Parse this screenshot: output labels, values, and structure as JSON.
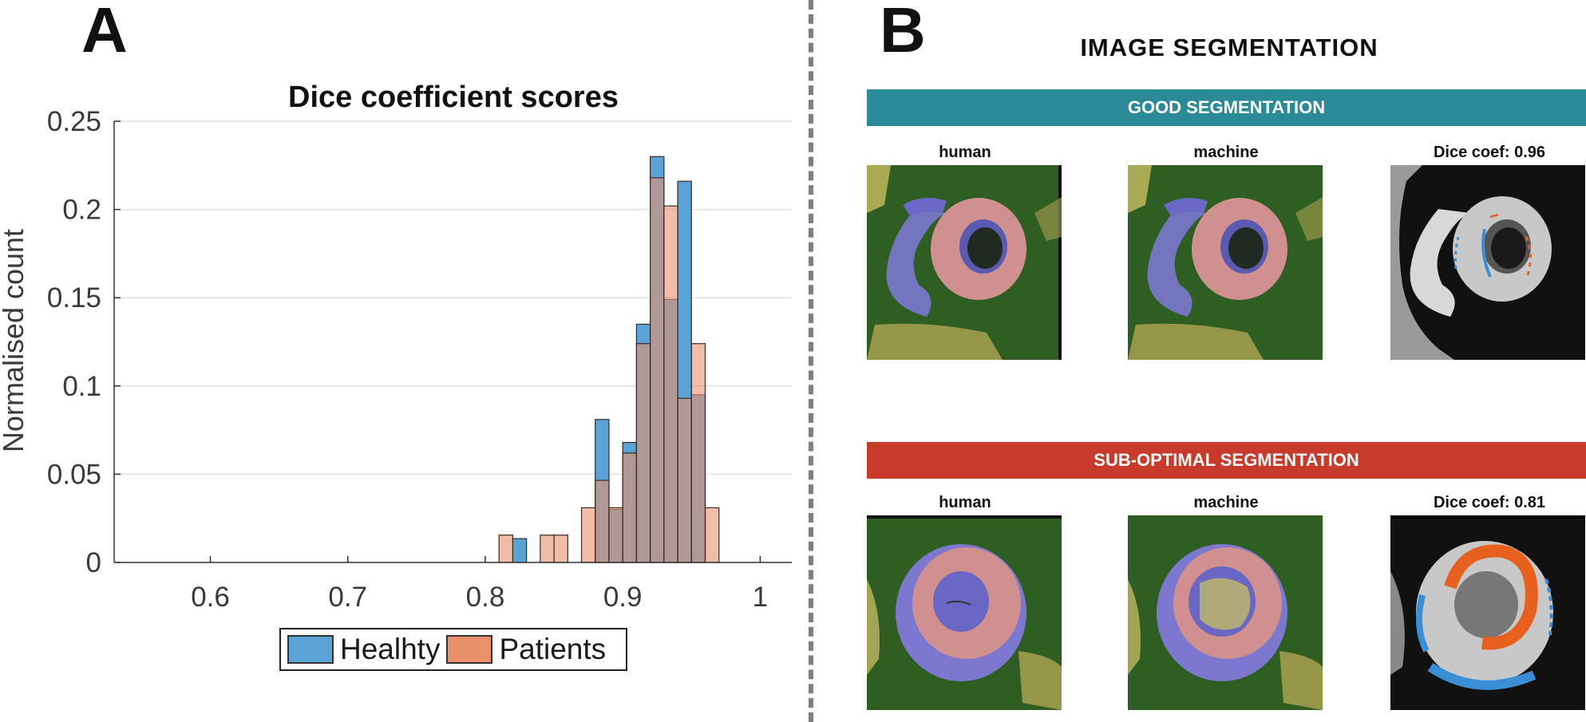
{
  "panel_a": {
    "letter": "A"
  },
  "panel_b": {
    "letter": "B",
    "title": "IMAGE SEGMENTATION",
    "good": {
      "banner": "GOOD SEGMENTATION",
      "labels": [
        "human",
        "machine",
        "Dice coef: 0.96"
      ],
      "color": "#2a8a96"
    },
    "bad": {
      "banner": "SUB-OPTIMAL SEGMENTATION",
      "labels": [
        "human",
        "machine",
        "Dice coef: 0.81"
      ],
      "color": "#c83a2a"
    }
  },
  "chart_data": {
    "type": "bar",
    "title": "Dice coefficient scores",
    "xlabel": "",
    "ylabel": "Normalised count",
    "xlim": [
      0.53,
      1.023
    ],
    "ylim": [
      0,
      0.25
    ],
    "xticks": [
      0.6,
      0.7,
      0.8,
      0.9,
      1
    ],
    "xtick_labels": [
      "0.6",
      "0.7",
      "0.8",
      "0.9",
      "1"
    ],
    "yticks": [
      0,
      0.05,
      0.1,
      0.15,
      0.2,
      0.25
    ],
    "ytick_labels": [
      "0",
      "0.05",
      "0.1",
      "0.15",
      "0.2",
      "0.25"
    ],
    "grid": "horizontal",
    "legend_position": "bottom-center",
    "bin_width": 0.01,
    "bin_starts": [
      0.81,
      0.82,
      0.84,
      0.85,
      0.87,
      0.88,
      0.89,
      0.9,
      0.91,
      0.92,
      0.93,
      0.94,
      0.95,
      0.96
    ],
    "series": [
      {
        "name": "Healhty",
        "color": "#5aa3d6",
        "values": [
          0,
          0.0135,
          0,
          0,
          0,
          0.081,
          0.03,
          0.068,
          0.135,
          0.23,
          0.149,
          0.216,
          0.095,
          0
        ]
      },
      {
        "name": "Patients",
        "color": "#e9916b",
        "values": [
          0.0155,
          0,
          0.0155,
          0.0155,
          0.031,
          0.0465,
          0.031,
          0.062,
          0.124,
          0.218,
          0.202,
          0.093,
          0.124,
          0.031
        ]
      }
    ]
  }
}
